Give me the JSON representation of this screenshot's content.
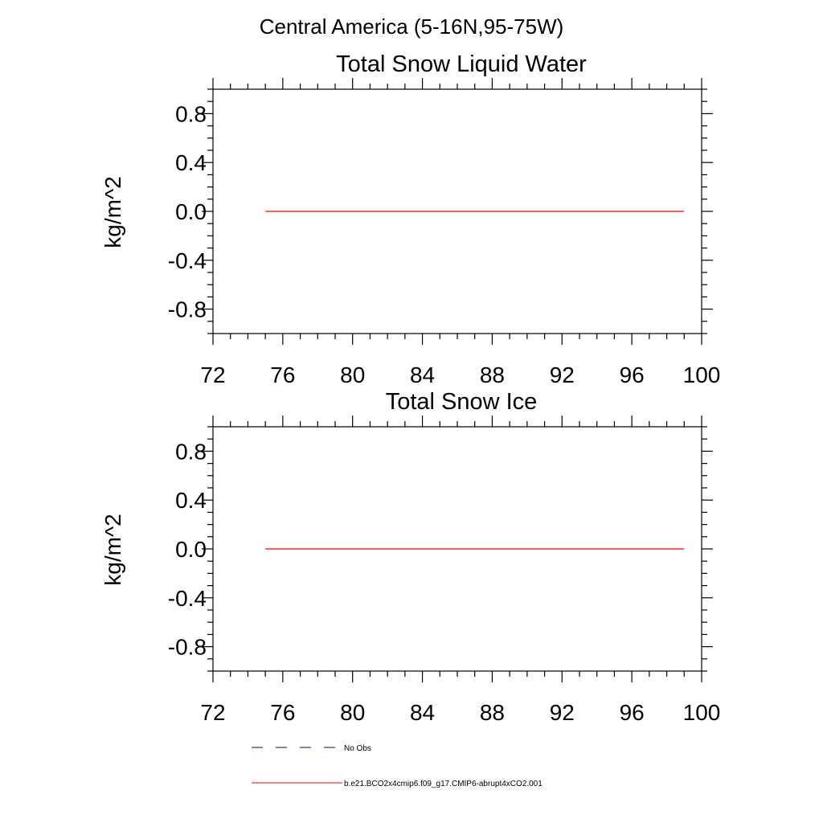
{
  "figure_title": "Central America (5-16N,95-75W)",
  "colors": {
    "model_line": "#ff0000",
    "obs_line": "#000080",
    "axes": "#000000"
  },
  "legend": {
    "obs_label": "No Obs",
    "model_label": "b.e21.BCO2x4cmip6.f09_g17.CMIP6-abrupt4xCO2.001"
  },
  "chart_data": [
    {
      "type": "line",
      "title": "Total Snow Liquid Water",
      "xlabel": "",
      "ylabel": "kg/m^2",
      "xlim": [
        72,
        100
      ],
      "ylim": [
        -1.0,
        1.0
      ],
      "x_ticks": [
        "72",
        "76",
        "80",
        "84",
        "88",
        "92",
        "96",
        "100"
      ],
      "y_ticks": [
        "0.8",
        "0.4",
        "0.0",
        "-0.4",
        "-0.8"
      ],
      "grid": false,
      "series": [
        {
          "name": "b.e21.BCO2x4cmip6.f09_g17.CMIP6-abrupt4xCO2.001",
          "x": [
            75,
            99
          ],
          "y": [
            0.0,
            0.0
          ]
        }
      ]
    },
    {
      "type": "line",
      "title": "Total Snow Ice",
      "xlabel": "",
      "ylabel": "kg/m^2",
      "xlim": [
        72,
        100
      ],
      "ylim": [
        -1.0,
        1.0
      ],
      "x_ticks": [
        "72",
        "76",
        "80",
        "84",
        "88",
        "92",
        "96",
        "100"
      ],
      "y_ticks": [
        "0.8",
        "0.4",
        "0.0",
        "-0.4",
        "-0.8"
      ],
      "grid": false,
      "series": [
        {
          "name": "b.e21.BCO2x4cmip6.f09_g17.CMIP6-abrupt4xCO2.001",
          "x": [
            75,
            99
          ],
          "y": [
            0.0,
            0.0
          ]
        }
      ]
    }
  ]
}
